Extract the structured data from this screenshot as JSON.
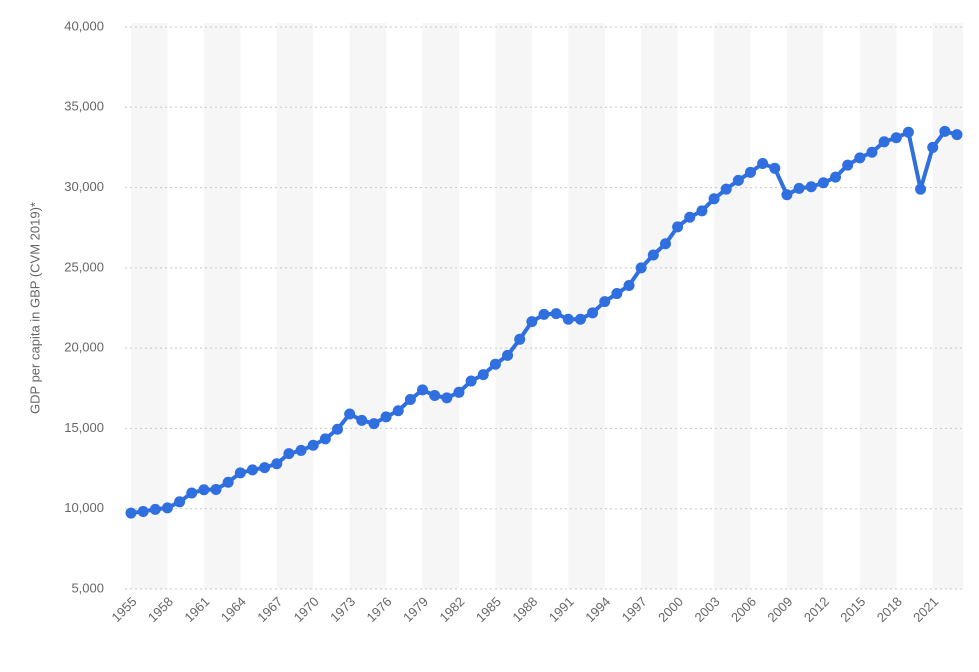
{
  "chart_data": {
    "type": "line",
    "y_label": "GDP per capita in GBP (CVM 2019)*",
    "categories": [
      "1955",
      null,
      null,
      "1958",
      null,
      null,
      "1961",
      null,
      null,
      "1964",
      null,
      null,
      "1967",
      null,
      null,
      "1970",
      null,
      null,
      "1973",
      null,
      null,
      "1976",
      null,
      null,
      "1979",
      null,
      null,
      "1982",
      null,
      null,
      "1985",
      null,
      null,
      "1988",
      null,
      null,
      "1991",
      null,
      null,
      "1994",
      null,
      null,
      "1997",
      null,
      null,
      "2000",
      null,
      null,
      "2003",
      null,
      null,
      "2006",
      null,
      null,
      "2009",
      null,
      null,
      "2012",
      null,
      null,
      "2015",
      null,
      null,
      "2018",
      null,
      null,
      "2021",
      null,
      null
    ],
    "series": [
      {
        "color": "#2f6fdf",
        "values": [
          9730,
          9830,
          9960,
          10050,
          10430,
          10980,
          11180,
          11200,
          11650,
          12230,
          12420,
          12560,
          12800,
          13430,
          13630,
          13950,
          14350,
          14950,
          15900,
          15500,
          15300,
          15720,
          16100,
          16800,
          17400,
          17050,
          16900,
          17250,
          17950,
          18350,
          19000,
          19550,
          20550,
          21650,
          22100,
          22150,
          21800,
          21800,
          22200,
          22900,
          23400,
          23900,
          25000,
          25800,
          26500,
          27550,
          28150,
          28550,
          29300,
          29900,
          30450,
          30950,
          31500,
          31200,
          29550,
          29950,
          30050,
          30300,
          30650,
          31400,
          31850,
          32200,
          32850,
          33100,
          33450,
          29900,
          32500,
          33500,
          33300
        ]
      }
    ],
    "ylim": [
      5000,
      40000
    ],
    "yticks": [
      {
        "value": 5000,
        "label": "5,000"
      },
      {
        "value": 10000,
        "label": "10,000"
      },
      {
        "value": 15000,
        "label": "15,000"
      },
      {
        "value": 20000,
        "label": "20,000"
      },
      {
        "value": 25000,
        "label": "25,000"
      },
      {
        "value": 30000,
        "label": "30,000"
      },
      {
        "value": 35000,
        "label": "35,000"
      },
      {
        "value": 40000,
        "label": "40,000"
      }
    ],
    "grid": true
  }
}
